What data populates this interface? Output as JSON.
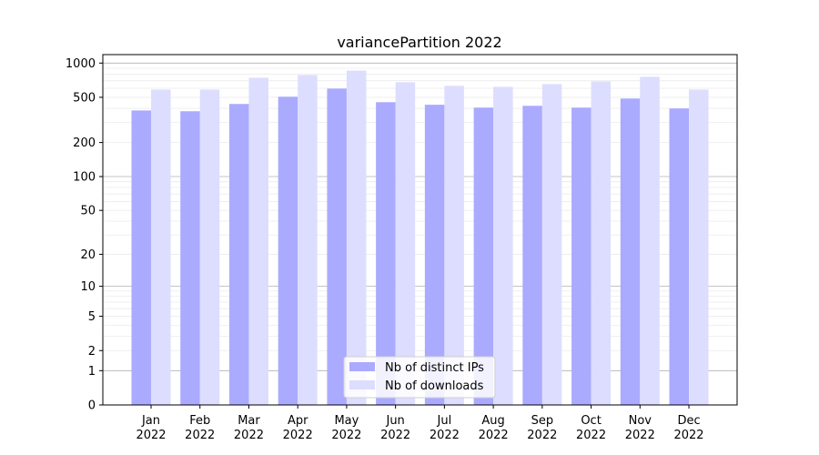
{
  "chart_data": {
    "type": "bar",
    "title": "variancePartition 2022",
    "xlabel": "",
    "ylabel": "",
    "yscale": "log(1+y)",
    "ylim": [
      0,
      1000
    ],
    "yticks": [
      0,
      1,
      2,
      5,
      10,
      20,
      50,
      100,
      200,
      500,
      1000
    ],
    "grid": true,
    "legend_placement": "bottom-center",
    "categories": [
      "Jan\n2022",
      "Feb\n2022",
      "Mar\n2022",
      "Apr\n2022",
      "May\n2022",
      "Jun\n2022",
      "Jul\n2022",
      "Aug\n2022",
      "Sep\n2022",
      "Oct\n2022",
      "Nov\n2022",
      "Dec\n2022"
    ],
    "series": [
      {
        "name": "Nb of distinct IPs",
        "color": "#aaaaff",
        "values": [
          383,
          377,
          437,
          506,
          596,
          453,
          430,
          406,
          421,
          406,
          488,
          399
        ]
      },
      {
        "name": "Nb of downloads",
        "color": "#ddddff",
        "values": [
          585,
          585,
          743,
          785,
          859,
          678,
          630,
          618,
          653,
          690,
          757,
          585
        ]
      }
    ]
  }
}
